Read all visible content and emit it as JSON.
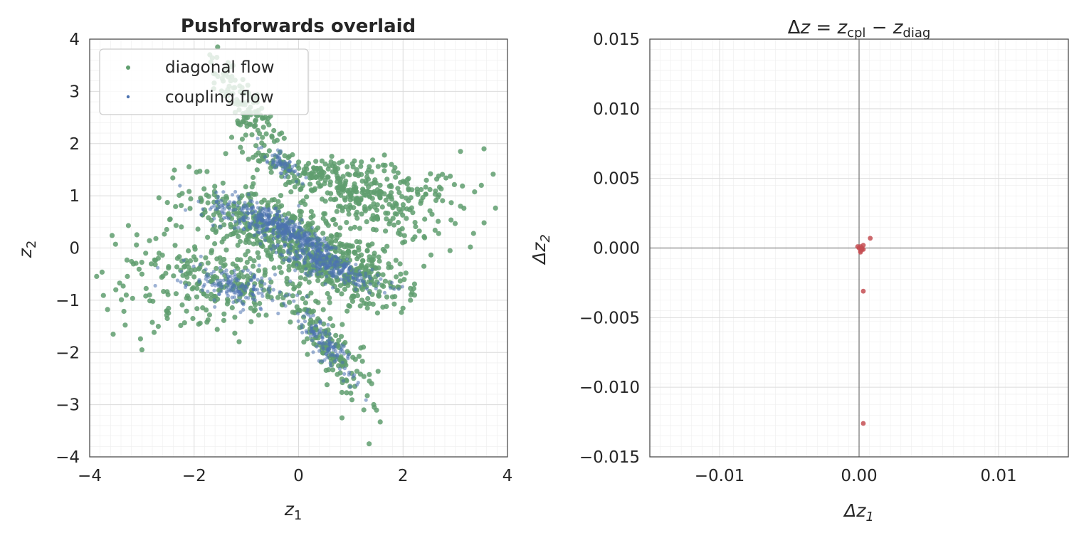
{
  "chart_data": [
    {
      "type": "scatter",
      "title": "Pushforwards  overlaid",
      "xlabel": "z",
      "xlabel_sub": "1",
      "ylabel": "z",
      "ylabel_sub": "2",
      "xlim": [
        -4,
        4
      ],
      "ylim": [
        -4,
        4
      ],
      "xticks": [
        -4,
        -2,
        0,
        2,
        4
      ],
      "yticks": [
        -4,
        -3,
        -2,
        -1,
        0,
        1,
        2,
        3,
        4
      ],
      "xtick_labels": [
        "−4",
        "−2",
        "0",
        "2",
        "4"
      ],
      "ytick_labels": [
        "−4",
        "−3",
        "−2",
        "−1",
        "0",
        "1",
        "2",
        "3",
        "4"
      ],
      "grid": true,
      "legend_position": "top-left",
      "series": [
        {
          "name": "diagonal flow",
          "color": "#5f9e6e",
          "clusters": [
            {
              "center": [
                -1.0,
                2.7
              ],
              "dir": [
                0.55,
                -0.8
              ],
              "len_sd": 0.6,
              "width_sd": 0.18,
              "n": 120
            },
            {
              "center": [
                0.3,
                1.4
              ],
              "dir": [
                0.9,
                -0.3
              ],
              "len_sd": 0.7,
              "width_sd": 0.18,
              "n": 160
            },
            {
              "center": [
                1.5,
                0.9
              ],
              "dir": [
                0.95,
                -0.25
              ],
              "len_sd": 0.7,
              "width_sd": 0.35,
              "n": 220
            },
            {
              "center": [
                -0.7,
                0.5
              ],
              "dir": [
                0.8,
                -0.3
              ],
              "len_sd": 0.8,
              "width_sd": 0.3,
              "n": 260
            },
            {
              "center": [
                0.5,
                -0.25
              ],
              "dir": [
                0.85,
                -0.3
              ],
              "len_sd": 0.8,
              "width_sd": 0.25,
              "n": 240
            },
            {
              "center": [
                0.9,
                -0.4
              ],
              "dir": [
                0.9,
                -0.35
              ],
              "len_sd": 0.8,
              "width_sd": 0.35,
              "n": 180
            },
            {
              "center": [
                -1.6,
                -0.6
              ],
              "dir": [
                0.9,
                -0.2
              ],
              "len_sd": 0.9,
              "width_sd": 0.4,
              "n": 240
            },
            {
              "center": [
                0.6,
                -1.9
              ],
              "dir": [
                0.55,
                -0.8
              ],
              "len_sd": 0.6,
              "width_sd": 0.2,
              "n": 150
            },
            {
              "center": [
                2.2,
                1.0
              ],
              "dir": [
                0.8,
                0.2
              ],
              "len_sd": 0.8,
              "width_sd": 0.5,
              "n": 40
            },
            {
              "center": [
                -3.2,
                -1.2
              ],
              "dir": [
                0.5,
                -0.6
              ],
              "len_sd": 0.5,
              "width_sd": 0.3,
              "n": 18
            }
          ],
          "outliers": [
            [
              -1.55,
              3.85
            ],
            [
              -1.7,
              3.7
            ],
            [
              -1.35,
              3.55
            ],
            [
              -1.3,
              3.2
            ],
            [
              3.55,
              1.9
            ],
            [
              3.1,
              1.85
            ],
            [
              3.35,
              0.28
            ],
            [
              2.9,
              -0.05
            ],
            [
              3.5,
              1.2
            ],
            [
              3.1,
              0.8
            ],
            [
              1.35,
              -3.75
            ],
            [
              1.45,
              -3.05
            ],
            [
              1.25,
              -3.1
            ],
            [
              -3.0,
              -1.95
            ],
            [
              -3.55,
              -1.65
            ],
            [
              -3.5,
              -0.8
            ],
            [
              -3.0,
              -0.5
            ],
            [
              2.4,
              -0.35
            ]
          ]
        },
        {
          "name": "coupling flow",
          "color": "#4c72b0",
          "clusters": [
            {
              "center": [
                -0.1,
                0.3
              ],
              "dir": [
                0.9,
                -0.45
              ],
              "len_sd": 0.45,
              "width_sd": 0.1,
              "n": 260
            },
            {
              "center": [
                0.6,
                -0.35
              ],
              "dir": [
                0.9,
                -0.35
              ],
              "len_sd": 0.5,
              "width_sd": 0.12,
              "n": 240
            },
            {
              "center": [
                -0.8,
                0.55
              ],
              "dir": [
                0.8,
                -0.3
              ],
              "len_sd": 0.5,
              "width_sd": 0.18,
              "n": 180
            },
            {
              "center": [
                -1.2,
                -0.75
              ],
              "dir": [
                0.9,
                -0.2
              ],
              "len_sd": 0.5,
              "width_sd": 0.18,
              "n": 160
            },
            {
              "center": [
                0.5,
                -1.8
              ],
              "dir": [
                0.55,
                -0.8
              ],
              "len_sd": 0.45,
              "width_sd": 0.12,
              "n": 120
            },
            {
              "center": [
                -0.3,
                1.6
              ],
              "dir": [
                0.7,
                -0.6
              ],
              "len_sd": 0.25,
              "width_sd": 0.08,
              "n": 60
            }
          ],
          "outliers": []
        }
      ]
    },
    {
      "type": "scatter",
      "title_prefix": "Δ",
      "title_z": "z",
      "title_eq": " = ",
      "title_sub1": "cpl",
      "title_minus": " − ",
      "title_sub2": "diag",
      "xlabel": "Δz",
      "xlabel_sub": "1",
      "ylabel": "Δz",
      "ylabel_sub": "2",
      "xlim": [
        -0.015,
        0.015
      ],
      "ylim": [
        -0.015,
        0.015
      ],
      "xticks": [
        -0.01,
        0.0,
        0.01
      ],
      "yticks": [
        -0.015,
        -0.01,
        -0.005,
        0.0,
        0.005,
        0.01,
        0.015
      ],
      "xtick_labels": [
        "−0.01",
        "0.00",
        "0.01"
      ],
      "ytick_labels": [
        "−0.015",
        "−0.010",
        "−0.005",
        "0.000",
        "0.005",
        "0.010",
        "0.015"
      ],
      "grid": true,
      "reference_lines": {
        "x": 0.0,
        "y": 0.0
      },
      "series": [
        {
          "name": "Δz",
          "color": "#c44e52",
          "points": [
            [
              0.0,
              0.0
            ],
            [
              0.0001,
              0.0001
            ],
            [
              0.0002,
              -0.0001
            ],
            [
              0.0001,
              -0.0002
            ],
            [
              0.0003,
              0.0002
            ],
            [
              -0.0001,
              0.0001
            ],
            [
              0.0002,
              0.0
            ],
            [
              0.0001,
              -0.0003
            ],
            [
              0.0003,
              -0.0001
            ],
            [
              0.0008,
              0.0007
            ],
            [
              0.0003,
              -0.0031
            ],
            [
              0.0003,
              -0.0126
            ]
          ]
        }
      ]
    }
  ]
}
